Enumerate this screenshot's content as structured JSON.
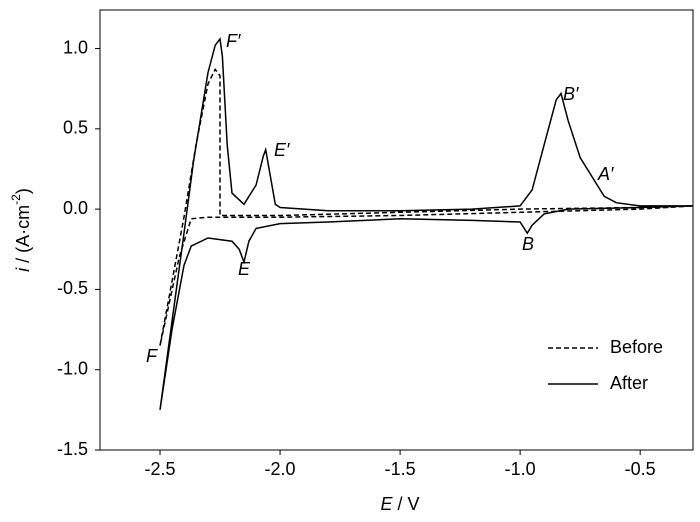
{
  "chart_data": {
    "type": "line",
    "x_label": {
      "symbol": "E",
      "unit": " / V"
    },
    "y_label": {
      "symbol": "i",
      "unit": " / (A·cm",
      "exponent": "-2",
      "close": ")"
    },
    "xlim": [
      -2.75,
      -0.28
    ],
    "ylim": [
      -1.5,
      1.24
    ],
    "xticks": [
      -2.5,
      {
        "value": -2.0,
        "label": "-2.0"
      },
      -1.5,
      {
        "value": -1.0,
        "label": "-1.0"
      },
      -0.5
    ],
    "yticks": [
      -1.5,
      {
        "value": -1.0,
        "label": "-1.0"
      },
      -0.5,
      {
        "value": 0.0,
        "label": "0.0"
      },
      0.5,
      {
        "value": 1.0,
        "label": "1.0"
      }
    ],
    "legend": "lower right",
    "annotations": [
      "F′",
      "E′",
      "B′",
      "A′",
      "E",
      "B",
      "F"
    ],
    "series": [
      {
        "name": "Before",
        "color": "#000000",
        "dash": "dashed",
        "x": [
          -2.5,
          -2.45,
          -2.4,
          -2.35,
          -2.3,
          -2.27,
          -2.25,
          -2.25,
          -2.2,
          -2.0,
          -1.5,
          -1.0,
          -0.5,
          -0.28,
          -0.5,
          -1.0,
          -1.5,
          -2.0,
          -2.3,
          -2.37,
          -2.42,
          -2.5
        ],
        "values": [
          -0.85,
          -0.45,
          -0.05,
          0.4,
          0.78,
          0.87,
          0.83,
          -0.04,
          -0.04,
          -0.04,
          -0.02,
          0.0,
          0.01,
          0.02,
          0.0,
          -0.02,
          -0.04,
          -0.05,
          -0.05,
          -0.06,
          -0.3,
          -0.85
        ]
      },
      {
        "name": "After",
        "color": "#000000",
        "dash": "solid",
        "x": [
          -2.5,
          -2.45,
          -2.4,
          -2.36,
          -2.3,
          -2.27,
          -2.25,
          -2.24,
          -2.22,
          -2.2,
          -2.15,
          -2.1,
          -2.07,
          -2.06,
          -2.04,
          -2.02,
          -2.0,
          -1.8,
          -1.5,
          -1.2,
          -1.0,
          -0.95,
          -0.9,
          -0.85,
          -0.83,
          -0.8,
          -0.75,
          -0.7,
          -0.65,
          -0.6,
          -0.5,
          -0.28,
          -0.5,
          -0.8,
          -0.9,
          -0.95,
          -0.97,
          -1.0,
          -1.2,
          -1.5,
          -1.8,
          -2.0,
          -2.1,
          -2.13,
          -2.15,
          -2.17,
          -2.2,
          -2.3,
          -2.37,
          -2.4,
          -2.45,
          -2.5
        ],
        "values": [
          -1.25,
          -0.7,
          -0.15,
          0.3,
          0.85,
          1.02,
          1.06,
          0.95,
          0.4,
          0.1,
          0.03,
          0.15,
          0.33,
          0.37,
          0.2,
          0.03,
          0.01,
          -0.01,
          -0.01,
          0.0,
          0.02,
          0.12,
          0.4,
          0.68,
          0.72,
          0.55,
          0.32,
          0.2,
          0.08,
          0.04,
          0.02,
          0.02,
          0.01,
          0.0,
          -0.03,
          -0.1,
          -0.15,
          -0.08,
          -0.07,
          -0.06,
          -0.08,
          -0.09,
          -0.12,
          -0.2,
          -0.33,
          -0.25,
          -0.2,
          -0.18,
          -0.23,
          -0.35,
          -0.75,
          -1.25
        ]
      }
    ]
  }
}
